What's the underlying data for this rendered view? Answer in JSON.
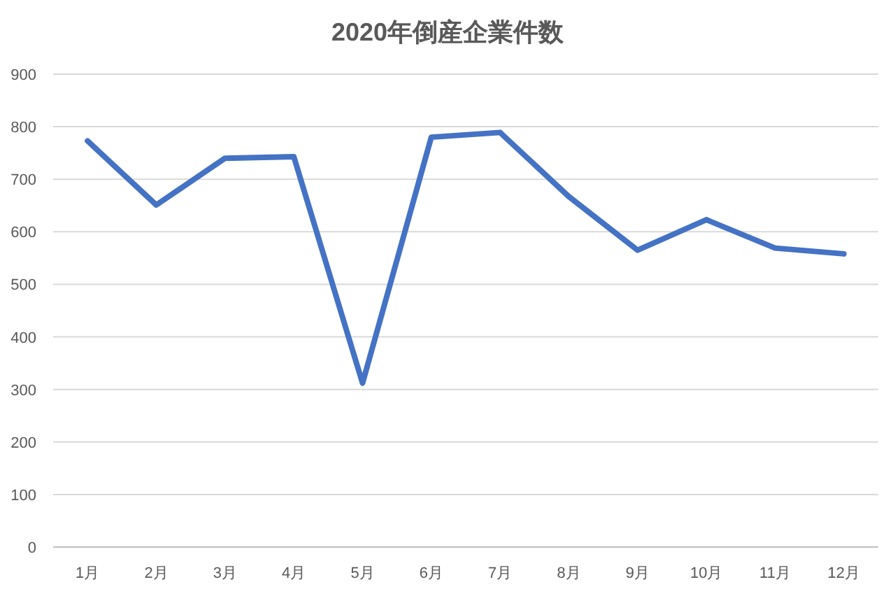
{
  "chart_data": {
    "type": "line",
    "title": "2020年倒産企業件数",
    "categories": [
      "1月",
      "2月",
      "3月",
      "4月",
      "5月",
      "6月",
      "7月",
      "8月",
      "9月",
      "10月",
      "11月",
      "12月"
    ],
    "series": [
      {
        "color": "#4472c4",
        "values": [
          773,
          651,
          740,
          743,
          312,
          780,
          789,
          667,
          565,
          623,
          569,
          558
        ]
      }
    ],
    "ylim": [
      0,
      900
    ],
    "yticks": [
      0,
      100,
      200,
      300,
      400,
      500,
      600,
      700,
      800,
      900
    ],
    "grid": "y"
  }
}
